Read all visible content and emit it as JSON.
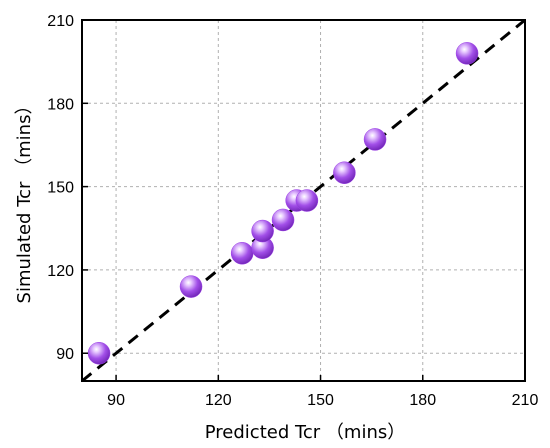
{
  "chart_data": {
    "type": "scatter",
    "xlabel": "Predicted Tcr （mins）",
    "ylabel": "Simulated Tcr （mins）",
    "xlim": [
      80,
      210
    ],
    "ylim": [
      80,
      210
    ],
    "xticks": [
      90,
      120,
      150,
      180,
      210
    ],
    "yticks": [
      90,
      120,
      150,
      180,
      210
    ],
    "grid": true,
    "reference_line": {
      "style": "dashed",
      "color": "#000000",
      "from": [
        80,
        80
      ],
      "to": [
        210,
        210
      ]
    },
    "marker_color": "#9b3fe6",
    "points": [
      {
        "x": 85,
        "y": 90
      },
      {
        "x": 112,
        "y": 114
      },
      {
        "x": 127,
        "y": 126
      },
      {
        "x": 133,
        "y": 128
      },
      {
        "x": 133,
        "y": 134
      },
      {
        "x": 139,
        "y": 138
      },
      {
        "x": 143,
        "y": 145
      },
      {
        "x": 146,
        "y": 145
      },
      {
        "x": 157,
        "y": 155
      },
      {
        "x": 166,
        "y": 167
      },
      {
        "x": 193,
        "y": 198
      }
    ]
  }
}
